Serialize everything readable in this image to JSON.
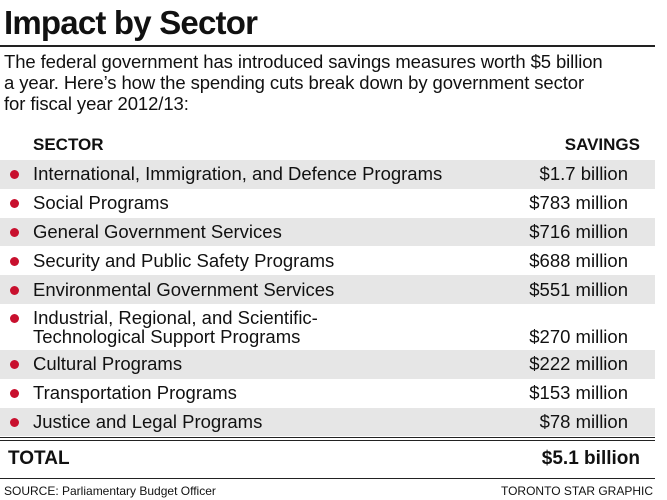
{
  "title": "Impact by Sector",
  "intro": [
    "The federal government has introduced savings measures worth $5 billion",
    "a year. Here’s how the spending cuts break down by government sector",
    "for fiscal year 2012/13:"
  ],
  "table": {
    "col_sector": "SECTOR",
    "col_savings": "SAVINGS",
    "rows": [
      {
        "label": [
          "International, Immigration, and Defence Programs"
        ],
        "value": "$1.7 billion"
      },
      {
        "label": [
          "Social Programs"
        ],
        "value": "$783 million"
      },
      {
        "label": [
          "General Government Services"
        ],
        "value": "$716 million"
      },
      {
        "label": [
          "Security and Public Safety Programs"
        ],
        "value": "$688 million"
      },
      {
        "label": [
          "Environmental Government Services"
        ],
        "value": "$551 million"
      },
      {
        "label": [
          "Industrial, Regional, and Scientific-",
          "Technological Support Programs"
        ],
        "value": "$270 million"
      },
      {
        "label": [
          "Cultural Programs"
        ],
        "value": "$222 million"
      },
      {
        "label": [
          "Transportation Programs"
        ],
        "value": "$153 million"
      },
      {
        "label": [
          "Justice and Legal Programs"
        ],
        "value": "$78 million"
      }
    ],
    "total_label": "TOTAL",
    "total_value": "$5.1 billion"
  },
  "source": "SOURCE: Parliamentary Budget Officer",
  "credit": "TORONTO STAR GRAPHIC",
  "colors": {
    "bullet": "#c8102e",
    "row_shade": "#e6e6e6"
  },
  "chart_data": {
    "type": "table",
    "title": "Impact by Sector",
    "columns": [
      "SECTOR",
      "SAVINGS"
    ],
    "rows": [
      [
        "International, Immigration, and Defence Programs",
        "$1.7 billion"
      ],
      [
        "Social Programs",
        "$783 million"
      ],
      [
        "General Government Services",
        "$716 million"
      ],
      [
        "Security and Public Safety Programs",
        "$688 million"
      ],
      [
        "Environmental Government Services",
        "$551 million"
      ],
      [
        "Industrial, Regional, and Scientific-Technological Support Programs",
        "$270 million"
      ],
      [
        "Cultural Programs",
        "$222 million"
      ],
      [
        "Transportation Programs",
        "$153 million"
      ],
      [
        "Justice and Legal Programs",
        "$78 million"
      ]
    ],
    "total": [
      "TOTAL",
      "$5.1 billion"
    ]
  }
}
